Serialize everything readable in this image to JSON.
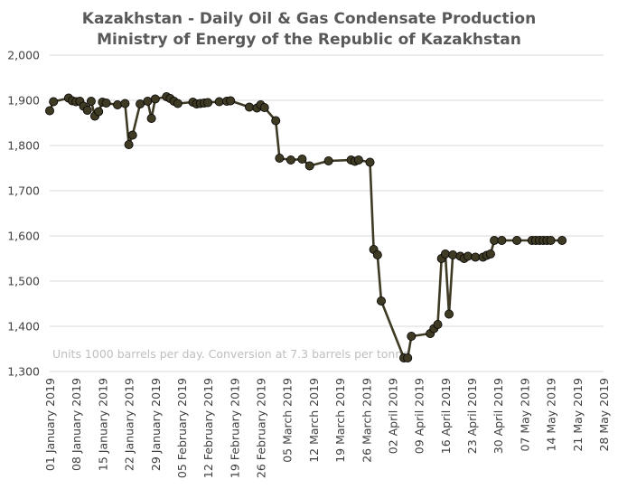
{
  "chart_data": {
    "type": "line",
    "title": "Kazakhstan - Daily Oil & Gas Condensate Production",
    "subtitle": "Ministry of Energy of the Republic of Kazakhstan",
    "annotation": "Units 1000 barrels per day. Conversion at 7.3 barrels per tonne",
    "xlabel": "",
    "ylabel": "",
    "ylim": [
      1300,
      2000
    ],
    "yticks": [
      1300,
      1400,
      1500,
      1600,
      1700,
      1800,
      1900,
      2000
    ],
    "ytick_labels": [
      "1,300",
      "1,400",
      "1,500",
      "1,600",
      "1,700",
      "1,800",
      "1,900",
      "2,000"
    ],
    "xlim": [
      "2019-01-01",
      "2019-05-28"
    ],
    "xticks": [
      "2019-01-01",
      "2019-01-08",
      "2019-01-15",
      "2019-01-22",
      "2019-01-29",
      "2019-02-05",
      "2019-02-12",
      "2019-02-19",
      "2019-02-26",
      "2019-03-05",
      "2019-03-12",
      "2019-03-19",
      "2019-03-26",
      "2019-04-02",
      "2019-04-09",
      "2019-04-16",
      "2019-04-23",
      "2019-04-30",
      "2019-05-07",
      "2019-05-14",
      "2019-05-21",
      "2019-05-28"
    ],
    "xtick_labels": [
      "01 January 2019",
      "08 January 2019",
      "15 January 2019",
      "22 January 2019",
      "29 January 2019",
      "05 February 2019",
      "12 February 2019",
      "19 February 2019",
      "26 February 2019",
      "05 March 2019",
      "12 March 2019",
      "19 March 2019",
      "26 March 2019",
      "02 April 2019",
      "09 April 2019",
      "16 April 2019",
      "23 April 2019",
      "30 April 2019",
      "07 May 2019",
      "14 May 2019",
      "21 May 2019",
      "28 May 2019"
    ],
    "grid": {
      "y": true,
      "x": false
    },
    "legend": "none",
    "line_color": "#3f3a24",
    "series": [
      {
        "x": [
          "2019-01-01",
          "2019-01-02",
          "2019-01-06",
          "2019-01-07",
          "2019-01-08",
          "2019-01-09",
          "2019-01-10",
          "2019-01-11",
          "2019-01-12",
          "2019-01-13",
          "2019-01-14",
          "2019-01-15",
          "2019-01-16",
          "2019-01-19",
          "2019-01-21",
          "2019-01-22",
          "2019-01-23",
          "2019-01-25",
          "2019-01-27",
          "2019-01-28",
          "2019-01-29",
          "2019-02-01",
          "2019-02-02",
          "2019-02-03",
          "2019-02-04",
          "2019-02-08",
          "2019-02-09",
          "2019-02-10",
          "2019-02-11",
          "2019-02-12",
          "2019-02-15",
          "2019-02-17",
          "2019-02-18",
          "2019-02-23",
          "2019-02-25",
          "2019-02-26",
          "2019-02-27",
          "2019-03-02",
          "2019-03-03",
          "2019-03-06",
          "2019-03-09",
          "2019-03-11",
          "2019-03-16",
          "2019-03-22",
          "2019-03-23",
          "2019-03-24",
          "2019-03-27",
          "2019-03-28",
          "2019-03-29",
          "2019-03-30",
          "2019-04-05",
          "2019-04-06",
          "2019-04-07",
          "2019-04-12",
          "2019-04-13",
          "2019-04-14",
          "2019-04-15",
          "2019-04-16",
          "2019-04-17",
          "2019-04-18",
          "2019-04-20",
          "2019-04-21",
          "2019-04-22",
          "2019-04-24",
          "2019-04-26",
          "2019-04-27",
          "2019-04-28",
          "2019-04-29",
          "2019-05-01",
          "2019-05-05",
          "2019-05-09",
          "2019-05-10",
          "2019-05-11",
          "2019-05-12",
          "2019-05-13",
          "2019-05-14",
          "2019-05-17"
        ],
        "y": [
          1877,
          1897,
          1905,
          1899,
          1897,
          1898,
          1887,
          1878,
          1898,
          1865,
          1875,
          1896,
          1894,
          1890,
          1893,
          1802,
          1823,
          1892,
          1898,
          1860,
          1903,
          1908,
          1904,
          1898,
          1893,
          1896,
          1892,
          1893,
          1894,
          1895,
          1897,
          1898,
          1899,
          1885,
          1883,
          1890,
          1884,
          1855,
          1772,
          1768,
          1770,
          1755,
          1766,
          1768,
          1765,
          1768,
          1763,
          1570,
          1558,
          1456,
          1330,
          1330,
          1378,
          1384,
          1395,
          1404,
          1550,
          1560,
          1427,
          1558,
          1555,
          1550,
          1555,
          1553,
          1553,
          1557,
          1560,
          1590,
          1590,
          1590,
          1590,
          1590,
          1590,
          1590,
          1590,
          1590,
          1590
        ]
      }
    ]
  }
}
